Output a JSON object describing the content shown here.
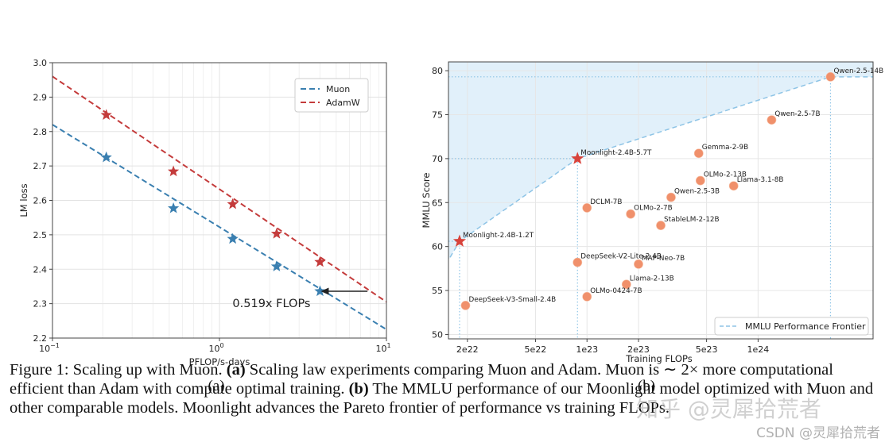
{
  "chart_data": [
    {
      "type": "line",
      "panel_label": "(a)",
      "xscale": "log",
      "xlim": [
        0.1,
        10
      ],
      "ylim": [
        2.2,
        3.0
      ],
      "xlabel": "PFLOP/s-days",
      "ylabel": "LM loss",
      "x_ticks": [
        {
          "value": 0.1,
          "base": "10",
          "exp": "−1"
        },
        {
          "value": 1,
          "base": "10",
          "exp": "0"
        },
        {
          "value": 10,
          "base": "10",
          "exp": "1"
        }
      ],
      "y_ticks": [
        "2.2",
        "2.3",
        "2.4",
        "2.5",
        "2.6",
        "2.7",
        "2.8",
        "2.9",
        "3.0"
      ],
      "legend": "top-right",
      "series": [
        {
          "name": "Muon",
          "color": "#3a7fb0",
          "fit_line": [
            [
              0.1,
              2.82
            ],
            [
              10,
              2.225
            ]
          ],
          "points": [
            [
              0.21,
              2.725
            ],
            [
              0.53,
              2.577
            ],
            [
              1.2,
              2.488
            ],
            [
              2.2,
              2.408
            ],
            [
              4.0,
              2.336
            ]
          ]
        },
        {
          "name": "AdamW",
          "color": "#c43b3b",
          "fit_line": [
            [
              0.1,
              2.96
            ],
            [
              10,
              2.305
            ]
          ],
          "points": [
            [
              0.21,
              2.848
            ],
            [
              0.53,
              2.684
            ],
            [
              1.2,
              2.589
            ],
            [
              2.2,
              2.503
            ],
            [
              4.0,
              2.421
            ]
          ]
        }
      ],
      "annotation": {
        "text": "0.519x FLOPs",
        "arrow_from": [
          7.7,
          2.336
        ],
        "arrow_to": [
          4.0,
          2.336
        ]
      }
    },
    {
      "type": "scatter",
      "panel_label": "(b)",
      "xscale": "log",
      "xlim": [
        1.55e+22,
        4.7e+24
      ],
      "ylim": [
        49.5,
        81
      ],
      "xlabel": "Training FLOPs",
      "ylabel": "MMLU Score",
      "x_ticks": [
        {
          "value": 2e+22,
          "label": "2e22"
        },
        {
          "value": 5e+22,
          "label": "5e22"
        },
        {
          "value": 1e+23,
          "label": "1e23"
        },
        {
          "value": 2e+23,
          "label": "2e23"
        },
        {
          "value": 5e+23,
          "label": "5e23"
        },
        {
          "value": 1e+24,
          "label": "1e24"
        }
      ],
      "y_ticks": [
        "50",
        "55",
        "60",
        "65",
        "70",
        "75",
        "80"
      ],
      "legend": "bottom-right",
      "legend_label": "MMLU Performance Frontier",
      "frontier_color": "#8ec4e6",
      "frontier": [
        [
          1.5e+22,
          58.0
        ],
        [
          1.8e+22,
          60.6
        ],
        [
          8.8e+22,
          70.0
        ],
        [
          2.65e+24,
          79.3
        ]
      ],
      "star_color": "#d8433b",
      "point_color": "#f0906b",
      "stars": [
        {
          "label": "Moonlight-2.4B-1.2T",
          "x": 1.8e+22,
          "y": 60.6
        },
        {
          "label": "Moonlight-2.4B-5.7T",
          "x": 8.8e+22,
          "y": 70.0
        }
      ],
      "points": [
        {
          "label": "Qwen-2.5-14B",
          "x": 2.65e+24,
          "y": 79.3
        },
        {
          "label": "Qwen-2.5-7B",
          "x": 1.2e+24,
          "y": 74.4
        },
        {
          "label": "Gemma-2-9B",
          "x": 4.5e+23,
          "y": 70.6
        },
        {
          "label": "OLMo-2-13B",
          "x": 4.6e+23,
          "y": 67.5
        },
        {
          "label": "Llama-3.1-8B",
          "x": 7.2e+23,
          "y": 66.9
        },
        {
          "label": "Qwen-2.5-3B",
          "x": 3.1e+23,
          "y": 65.6
        },
        {
          "label": "DCLM-7B",
          "x": 1e+23,
          "y": 64.4
        },
        {
          "label": "OLMo-2-7B",
          "x": 1.8e+23,
          "y": 63.7
        },
        {
          "label": "StableLM-2-12B",
          "x": 2.7e+23,
          "y": 62.4
        },
        {
          "label": "DeepSeek-V2-Lite-2.4B",
          "x": 8.8e+22,
          "y": 58.2
        },
        {
          "label": "MAP-Neo-7B",
          "x": 2e+23,
          "y": 58.0
        },
        {
          "label": "Llama-2-13B",
          "x": 1.7e+23,
          "y": 55.7
        },
        {
          "label": "OLMo-0424-7B",
          "x": 1e+23,
          "y": 54.3
        },
        {
          "label": "DeepSeek-V3-Small-2.4B",
          "x": 1.95e+22,
          "y": 53.3
        }
      ]
    }
  ],
  "caption": {
    "figure_label": "Figure 1:",
    "intro": " Scaling up with Muon. ",
    "part_a_label": "(a)",
    "part_a_text": " Scaling law experiments comparing Muon and Adam. Muon is ∼ 2× more computational efficient than Adam with compute optimal training. ",
    "part_b_label": "(b)",
    "part_b_text": " The MMLU performance of our Moonlight model optimized with Muon and other comparable models. Moonlight advances the Pareto frontier of performance vs training FLOPs."
  },
  "watermarks": {
    "overlay": "知乎 @灵犀拾荒者",
    "source": "CSDN @灵犀拾荒者"
  }
}
